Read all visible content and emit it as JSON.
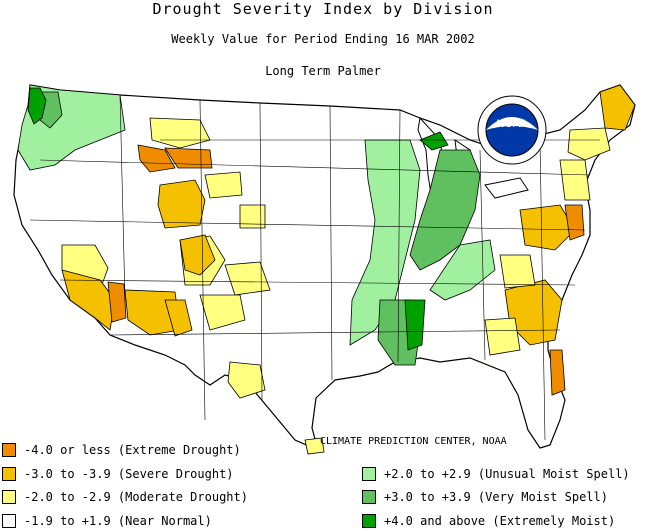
{
  "header": {
    "title": "Drought Severity Index by Division",
    "subtitle": "Weekly Value for Period Ending 16 MAR 2002",
    "index_name": "Long Term Palmer"
  },
  "logo": {
    "text": "NOAA"
  },
  "credit": "CLIMATE PREDICTION CENTER, NOAA",
  "colors": {
    "extreme_drought": "#f08c00",
    "severe_drought": "#f5c000",
    "moderate_drought": "#ffff80",
    "near_normal": "#ffffff",
    "unusual_moist": "#a0f0a0",
    "very_moist": "#60c060",
    "extremely_moist": "#00a000",
    "boundary": "#000000"
  },
  "legend": [
    {
      "label": "-4.0 or less (Extreme Drought)",
      "color": "#f08c00"
    },
    {
      "label": "-3.0 to -3.9 (Severe Drought)",
      "color": "#f5c000"
    },
    {
      "label": "-2.0 to -2.9 (Moderate Drought)",
      "color": "#ffff80"
    },
    {
      "label": "-1.9 to +1.9 (Near Normal)",
      "color": "#ffffff"
    },
    {
      "label": "+2.0 to +2.9 (Unusual Moist Spell)",
      "color": "#a0f0a0"
    },
    {
      "label": "+3.0 to +3.9 (Very Moist Spell)",
      "color": "#60c060"
    },
    {
      "label": "+4.0 and above (Extremely Moist)",
      "color": "#00a000"
    }
  ]
}
